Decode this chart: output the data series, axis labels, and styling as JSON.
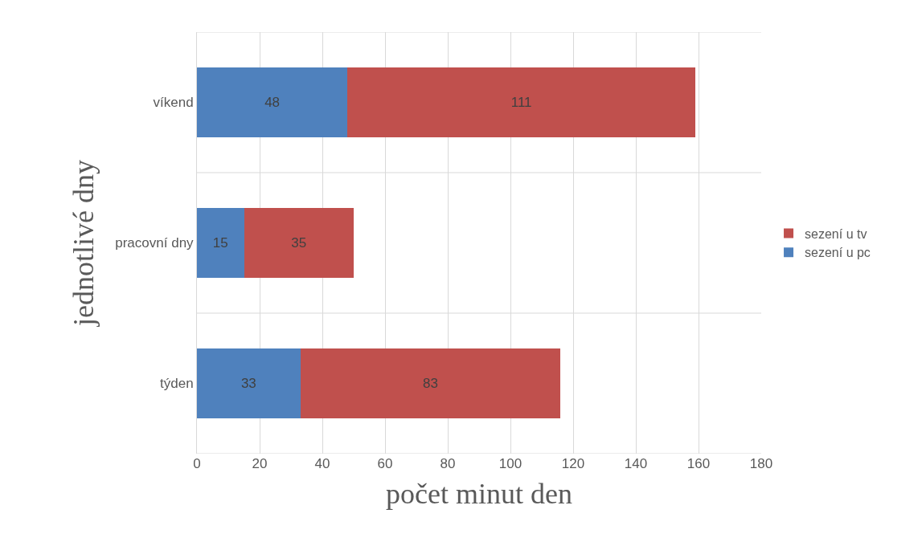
{
  "chart_data": {
    "type": "bar",
    "orientation": "horizontal",
    "stacked": true,
    "xlabel": "počet minut den",
    "ylabel": "jednotlivé dny",
    "categories": [
      "víkend",
      "pracovní dny",
      "týden"
    ],
    "series": [
      {
        "name": "sezení u pc",
        "color": "#4f81bd",
        "values": [
          48,
          15,
          33
        ]
      },
      {
        "name": "sezení u tv",
        "color": "#c0504d",
        "values": [
          111,
          35,
          83
        ]
      }
    ],
    "xlim": [
      0,
      180
    ],
    "xticks": [
      0,
      20,
      40,
      60,
      80,
      100,
      120,
      140,
      160,
      180
    ],
    "grid": true,
    "legend": "right",
    "data_labels": true
  }
}
